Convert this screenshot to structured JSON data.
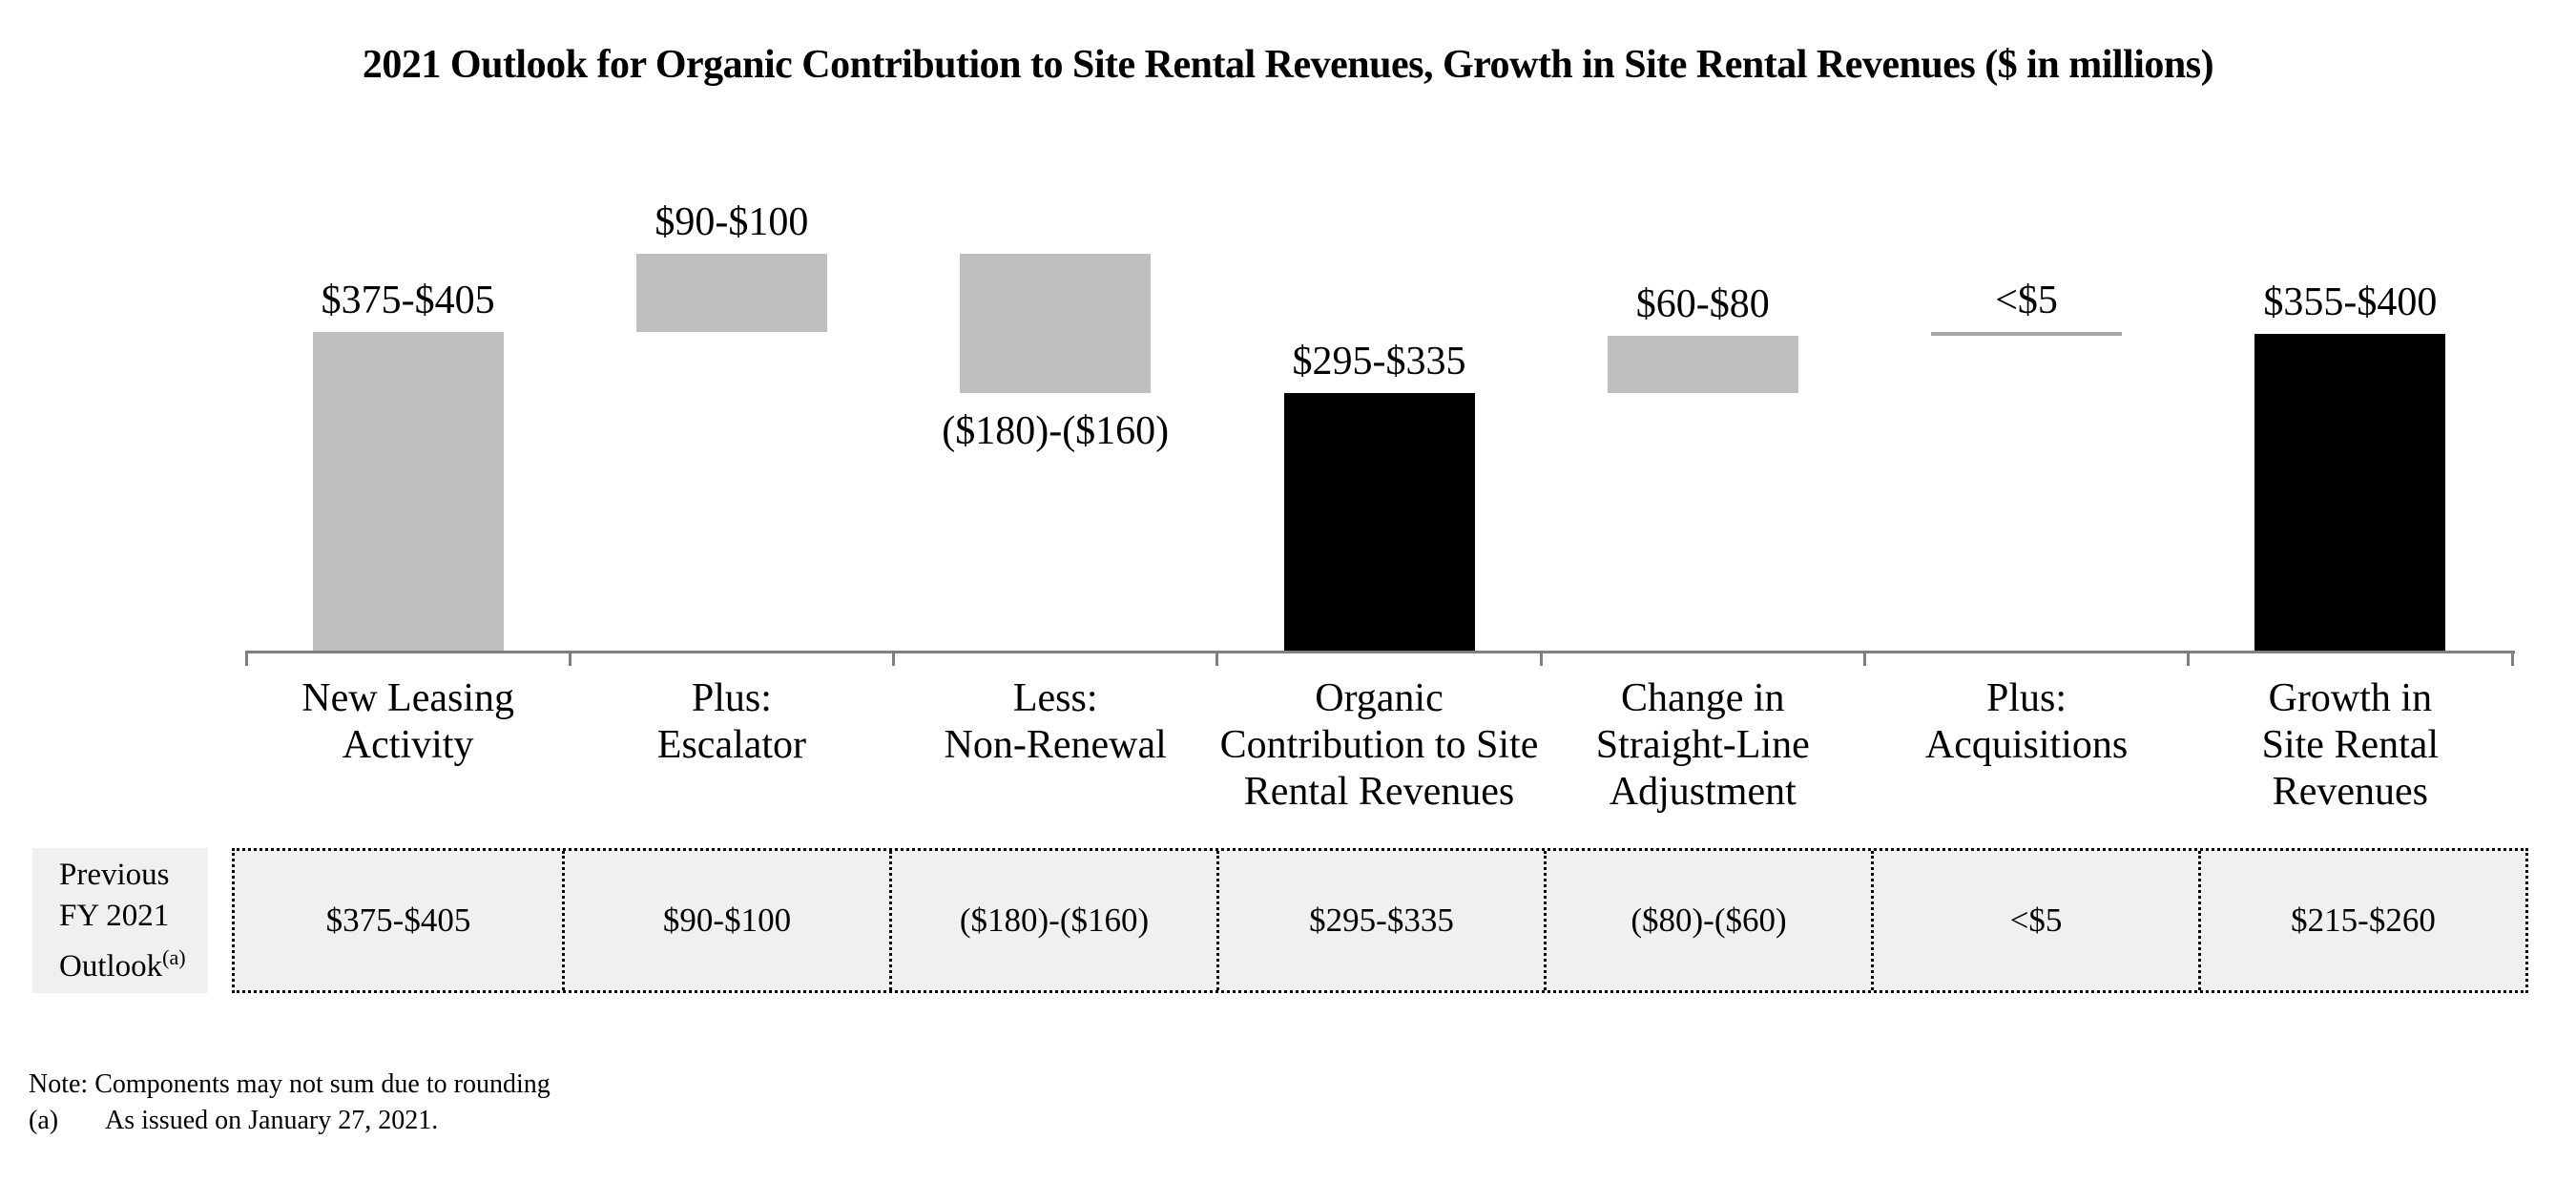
{
  "title": "2021 Outlook for Organic Contribution to Site Rental Revenues, Growth in Site Rental Revenues ($ in millions)",
  "chart_data": {
    "type": "bar",
    "subtype": "waterfall",
    "unit": "$ in millions",
    "baseline_value": 0,
    "axis_color": "#808080",
    "grid": false,
    "legend": false,
    "value_axis_visible": false,
    "steps": [
      {
        "category_lines": [
          "New Leasing",
          "Activity"
        ],
        "value_label": "$375-$405",
        "range": [
          375,
          405
        ],
        "kind": "increase",
        "color": "#bfbfbf",
        "label_position": "above"
      },
      {
        "category_lines": [
          "Plus:",
          "Escalator"
        ],
        "value_label": "$90-$100",
        "range": [
          90,
          100
        ],
        "kind": "increase",
        "color": "#bfbfbf",
        "label_position": "above"
      },
      {
        "category_lines": [
          "Less:",
          "Non-Renewal"
        ],
        "value_label": "($180)-($160)",
        "range": [
          -180,
          -160
        ],
        "kind": "decrease",
        "color": "#bfbfbf",
        "label_position": "below"
      },
      {
        "category_lines": [
          "Organic",
          "Contribution to Site",
          "Rental Revenues"
        ],
        "value_label": "$295-$335",
        "range": [
          295,
          335
        ],
        "kind": "subtotal",
        "color": "#000000",
        "label_position": "above"
      },
      {
        "category_lines": [
          "Change in",
          "Straight-Line",
          "Adjustment"
        ],
        "value_label": "$60-$80",
        "range": [
          60,
          80
        ],
        "kind": "increase",
        "color": "#bfbfbf",
        "label_position": "above"
      },
      {
        "category_lines": [
          "Plus:",
          "Acquisitions"
        ],
        "value_label": "<$5",
        "range": [
          0,
          5
        ],
        "kind": "line",
        "color": "#a6a6a6",
        "label_position": "above"
      },
      {
        "category_lines": [
          "Growth in",
          "Site Rental",
          "Revenues"
        ],
        "value_label": "$355-$400",
        "range": [
          355,
          400
        ],
        "kind": "total",
        "color": "#000000",
        "label_position": "above"
      }
    ]
  },
  "table": {
    "row_label_lines": [
      "Previous",
      "FY 2021"
    ],
    "row_label_last": "Outlook",
    "row_label_sup": "(a)",
    "values": [
      "$375-$405",
      "$90-$100",
      "($180)-($160)",
      "$295-$335",
      "($80)-($60)",
      "<$5",
      "$215-$260"
    ],
    "background": "#f0f0f0"
  },
  "notes": {
    "line1": "Note: Components may not sum due to rounding",
    "footnote_marker": "(a)",
    "footnote_text": "As issued on January 27, 2021."
  }
}
